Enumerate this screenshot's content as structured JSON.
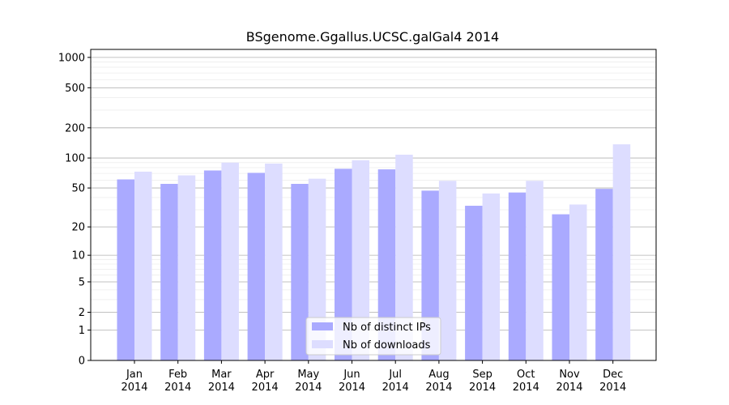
{
  "chart_data": {
    "type": "bar",
    "title": "BSgenome.Ggallus.UCSC.galGal4 2014",
    "xlabel": "",
    "ylabel": "",
    "y_scale": "log(1 + y)",
    "ylim": [
      0,
      1200
    ],
    "y_ticks": [
      0,
      1,
      2,
      5,
      10,
      20,
      50,
      100,
      200,
      500,
      1000
    ],
    "categories": [
      "Jan\n2014",
      "Feb\n2014",
      "Mar\n2014",
      "Apr\n2014",
      "May\n2014",
      "Jun\n2014",
      "Jul\n2014",
      "Aug\n2014",
      "Sep\n2014",
      "Oct\n2014",
      "Nov\n2014",
      "Dec\n2014"
    ],
    "series": [
      {
        "name": "Nb of distinct IPs",
        "color": "#aaaaff",
        "values": [
          61,
          55,
          75,
          71,
          55,
          78,
          77,
          47,
          33,
          45,
          27,
          49
        ]
      },
      {
        "name": "Nb of downloads",
        "color": "#ddddff",
        "values": [
          73,
          67,
          90,
          88,
          62,
          95,
          108,
          59,
          44,
          59,
          34,
          137
        ]
      }
    ],
    "grid": true,
    "legend_position": "bottom-center"
  }
}
